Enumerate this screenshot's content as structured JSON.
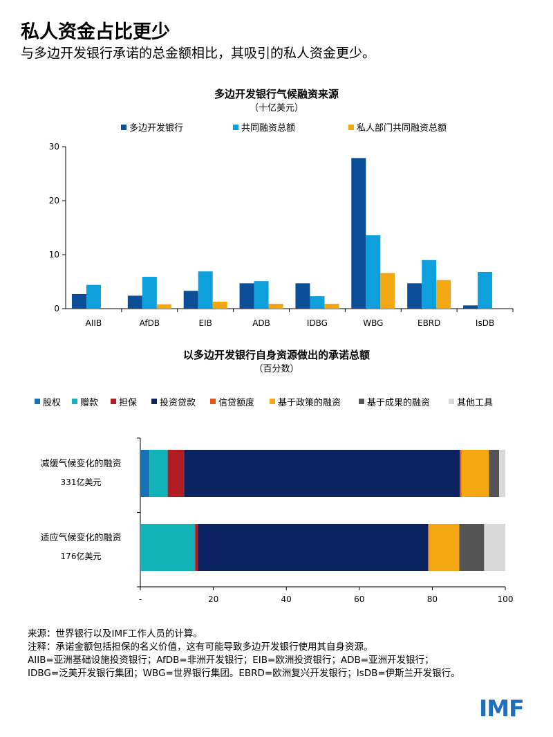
{
  "title": "私人资金占比更少",
  "subtitle": "与多边开发银行承诺的总金额相比，其吸引的私人资金更少。",
  "chart_data": [
    {
      "type": "bar",
      "title": "多边开发银行气候融资来源",
      "subtitle": "（十亿美元）",
      "categories": [
        "AIIB",
        "AfDB",
        "EIB",
        "ADB",
        "IDBG",
        "WBG",
        "EBRD",
        "IsDB"
      ],
      "series": [
        {
          "name": "多边开发银行",
          "color": "#0b4d96",
          "values": [
            2.7,
            2.4,
            3.3,
            4.7,
            4.7,
            27.9,
            4.7,
            0.6
          ]
        },
        {
          "name": "共同融资总额",
          "color": "#0ea0dd",
          "values": [
            4.4,
            5.9,
            6.9,
            5.1,
            2.3,
            13.6,
            9.0,
            6.8
          ]
        },
        {
          "name": "私人部门共同融资总额",
          "color": "#f3a712",
          "values": [
            0,
            0.8,
            1.3,
            0.9,
            0.9,
            6.6,
            5.3,
            0
          ]
        }
      ],
      "yticks": [
        "0",
        "10",
        "20",
        "30"
      ],
      "ylim": [
        0,
        30
      ],
      "legend": "top"
    },
    {
      "type": "bar",
      "orientation": "horizontal-stacked",
      "title": "以多边开发银行自身资源做出的承诺总额",
      "subtitle": "（百分数）",
      "categories": [
        {
          "name": "减缓气候变化的融资",
          "total": "331亿美元"
        },
        {
          "name": "适应气候变化的融资",
          "total": "176亿美元"
        }
      ],
      "series": [
        {
          "name": "股权",
          "color": "#1474b4",
          "values": [
            2.5,
            0
          ]
        },
        {
          "name": "赠款",
          "color": "#12b3b8",
          "values": [
            5,
            15
          ]
        },
        {
          "name": "担保",
          "color": "#b01d23",
          "values": [
            4.5,
            0.8
          ]
        },
        {
          "name": "投资贷款",
          "color": "#0b2361",
          "values": [
            75.5,
            63
          ]
        },
        {
          "name": "信贷额度",
          "color": "#e0561b",
          "values": [
            0.5,
            0.3
          ]
        },
        {
          "name": "基于政策的融资",
          "color": "#f3a712",
          "values": [
            7.5,
            8.3
          ]
        },
        {
          "name": "基于成果的融资",
          "color": "#555555",
          "values": [
            2.8,
            6.8
          ]
        },
        {
          "name": "其他工具",
          "color": "#d9d9d9",
          "values": [
            1.7,
            5.8
          ]
        }
      ],
      "xticks": [
        "-",
        "20",
        "40",
        "60",
        "80",
        "100"
      ],
      "xlim": [
        0,
        100
      ],
      "legend": "top"
    }
  ],
  "notes": [
    "来源：世界银行以及IMF工作人员的计算。",
    "注释：承诺金额包括担保的名义价值，这有可能导致多边开发银行使用其自身资源。",
    "AIIB=亚洲基础设施投资银行；AfDB=非洲开发银行；EIB=欧洲投资银行；ADB=亚洲开发银行；",
    "IDBG=泛美开发银行集团；WBG=世界银行集团。EBRD=欧洲复兴开发银行；IsDB=伊斯兰开发银行。"
  ],
  "logo": "IMF"
}
